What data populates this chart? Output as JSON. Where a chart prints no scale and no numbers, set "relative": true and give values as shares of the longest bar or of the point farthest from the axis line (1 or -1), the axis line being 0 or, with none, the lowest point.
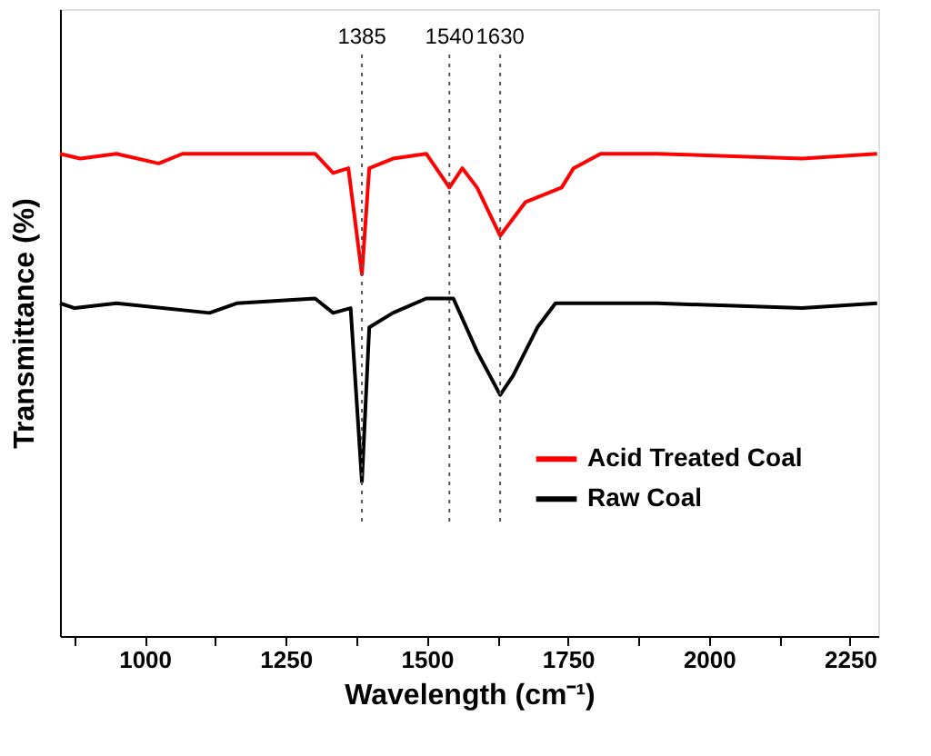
{
  "chart_data": {
    "type": "line",
    "relative": true,
    "xlabel": "Wavelength (cm⁻¹)",
    "ylabel": "Transmittance (%)",
    "xlim": [
      850,
      2300
    ],
    "xticks": [
      {
        "value": 875,
        "label": null
      },
      1000,
      {
        "value": 1125,
        "label": null
      },
      1250,
      {
        "value": 1375,
        "label": null
      },
      1500,
      {
        "value": 1625,
        "label": null
      },
      1750,
      {
        "value": 1875,
        "label": null
      },
      2000,
      {
        "value": 2125,
        "label": null
      },
      2250
    ],
    "tick_labels": "x",
    "grid": false,
    "legend": "right",
    "marker": "none",
    "line_style": "solid",
    "series": [
      {
        "name": "Acid Treated Coal",
        "color": "#ff0000",
        "x": [
          850,
          886,
          950,
          1025,
          1067,
          1163,
          1302,
          1334,
          1361,
          1385,
          1398,
          1440,
          1499,
          1540,
          1563,
          1589,
          1630,
          1675,
          1739,
          1760,
          1808,
          1909,
          2165,
          2298
        ],
        "values": [
          1.0,
          0.99,
          1.0,
          0.98,
          1.0,
          1.0,
          1.0,
          0.96,
          0.97,
          0.75,
          0.97,
          0.99,
          1.0,
          0.93,
          0.97,
          0.93,
          0.83,
          0.9,
          0.93,
          0.97,
          1.0,
          1.0,
          0.99,
          1.0
        ]
      },
      {
        "name": "Raw Coal",
        "color": "#000000",
        "x": [
          850,
          876,
          950,
          1115,
          1163,
          1302,
          1334,
          1365,
          1385,
          1398,
          1440,
          1499,
          1547,
          1589,
          1630,
          1653,
          1696,
          1728,
          1909,
          2165,
          2298
        ],
        "values": [
          0.69,
          0.68,
          0.69,
          0.67,
          0.69,
          0.7,
          0.67,
          0.68,
          0.32,
          0.64,
          0.67,
          0.7,
          0.7,
          0.59,
          0.5,
          0.54,
          0.64,
          0.69,
          0.69,
          0.68,
          0.69
        ]
      }
    ],
    "ref_lines": [
      {
        "axis": "x",
        "value": 1385,
        "label": "1385",
        "color": "#555555",
        "line_style": "dotted"
      },
      {
        "axis": "x",
        "value": 1540,
        "label": "1540",
        "color": "#555555",
        "line_style": "dotted"
      },
      {
        "axis": "x",
        "value": 1630,
        "label": "1630",
        "color": "#555555",
        "line_style": "dotted"
      }
    ]
  }
}
